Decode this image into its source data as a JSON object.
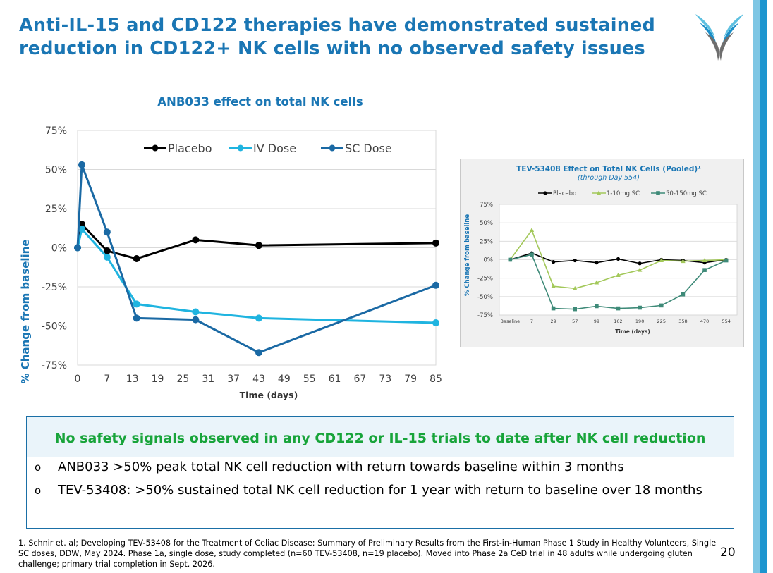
{
  "slide": {
    "title": "Anti-IL-15 and CD122 therapies have demonstrated sustained reduction in CD122+ NK cells with no observed safety issues",
    "page_number": "20",
    "brand_colors": {
      "title": "#1a76b4",
      "stripe_light": "#7ec6e4",
      "stripe_dark": "#1c95cf",
      "safety_green": "#18a43a"
    },
    "logo_icon": "v-swoosh-logo-icon"
  },
  "chart_data": [
    {
      "type": "line",
      "title": "ANB033 effect on total NK cells",
      "xlabel": "Time (days)",
      "ylabel": "% Change from baseline",
      "xlim": [
        0,
        85
      ],
      "ylim": [
        -75,
        75
      ],
      "x_ticks": [
        0,
        7,
        13,
        19,
        25,
        31,
        37,
        43,
        49,
        55,
        61,
        67,
        73,
        79,
        85
      ],
      "y_ticks": [
        -75,
        -50,
        -25,
        0,
        25,
        50,
        75
      ],
      "y_tick_labels": [
        "-75%",
        "-50%",
        "-25%",
        "0%",
        "25%",
        "50%",
        "75%"
      ],
      "grid": "horizontal",
      "legend": "top-center",
      "series": [
        {
          "name": "Placebo",
          "color": "#000000",
          "x": [
            0,
            1,
            7,
            14,
            28,
            43,
            85
          ],
          "values": [
            0,
            15,
            -2,
            -7,
            5,
            1.5,
            3
          ]
        },
        {
          "name": "IV Dose",
          "color": "#1fb4e0",
          "x": [
            0,
            1,
            7,
            14,
            28,
            43,
            85
          ],
          "values": [
            0,
            12,
            -6,
            -36,
            -41,
            -45,
            -48
          ]
        },
        {
          "name": "SC Dose",
          "color": "#1a69a4",
          "x": [
            0,
            1,
            7,
            14,
            28,
            43,
            85
          ],
          "values": [
            0,
            53,
            10,
            -45,
            -46,
            -67,
            -24
          ]
        }
      ]
    },
    {
      "type": "line",
      "title": "TEV-53408 Effect on Total NK Cells (Pooled)¹",
      "subtitle": "(through Day 554)",
      "xlabel": "Time (days)",
      "ylabel": "% Change from baseline",
      "categories": [
        "Baseline",
        "7",
        "29",
        "57",
        "99",
        "162",
        "190",
        "225",
        "358",
        "470",
        "554"
      ],
      "ylim": [
        -75,
        75
      ],
      "y_ticks": [
        -75,
        -50,
        -25,
        0,
        25,
        50,
        75
      ],
      "y_tick_labels": [
        "-75%",
        "-50%",
        "-25%",
        "0%",
        "25%",
        "50%",
        "75%"
      ],
      "grid": "horizontal",
      "legend": "top",
      "series": [
        {
          "name": "Placebo",
          "color": "#000000",
          "marker": "circle",
          "values": [
            0,
            9,
            -3,
            -1,
            -4,
            1,
            -5,
            0,
            -1,
            -4,
            0
          ]
        },
        {
          "name": "1-10mg SC",
          "color": "#a3c85a",
          "marker": "triangle",
          "x_index": [
            0,
            1,
            2,
            3,
            4,
            5,
            6,
            7,
            8,
            9,
            10
          ],
          "values": [
            0,
            40,
            -36,
            -39,
            -31,
            -21,
            -14,
            -1,
            -2,
            -1,
            0
          ]
        },
        {
          "name": "50-150mg SC",
          "color": "#3e8a78",
          "marker": "square",
          "values": [
            0,
            7,
            -66,
            -67,
            -63,
            -66,
            -65,
            -62,
            -47,
            -14,
            -1
          ]
        }
      ]
    }
  ],
  "safety_box": {
    "heading": "No safety signals observed in any CD122 or IL-15 trials to date after NK cell reduction",
    "bullet_mark": "o",
    "bullet1": {
      "pre": "ANB033 >50% ",
      "emph": "peak",
      "post": " total NK cell reduction with return towards baseline within 3 months"
    },
    "bullet2": {
      "pre": "TEV-53408: >50% ",
      "emph": "sustained",
      "post": " total NK cell reduction for 1 year with return to baseline over 18 months"
    }
  },
  "footnote": "1. Schnir et. al; Developing TEV-53408 for the Treatment of Celiac Disease: Summary of Preliminary Results from the First-in-Human Phase 1 Study in Healthy Volunteers, Single SC doses, DDW, May 2024. Phase 1a, single dose, study completed (n=60 TEV-53408, n=19 placebo). Moved into Phase 2a CeD trial in 48 adults while undergoing gluten challenge; primary trial completion in Sept. 2026."
}
